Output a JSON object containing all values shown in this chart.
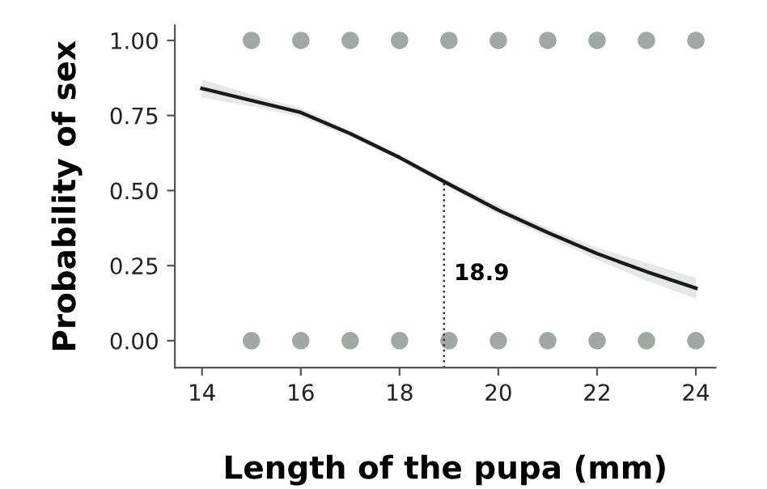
{
  "chart_data": {
    "type": "line",
    "xlabel": "Length of the pupa (mm)",
    "ylabel": "Probability of sex",
    "xlim": [
      13.45,
      24.4
    ],
    "ylim": [
      -0.09,
      1.05
    ],
    "xticks": [
      14,
      16,
      18,
      20,
      22,
      24
    ],
    "yticks": [
      {
        "value": 0,
        "label": "0.00"
      },
      {
        "value": 0.25,
        "label": "0.25"
      },
      {
        "value": 0.5,
        "label": "0.50"
      },
      {
        "value": 0.75,
        "label": "0.75"
      },
      {
        "value": 1,
        "label": "1.00"
      }
    ],
    "grid": false,
    "legend": false,
    "series": [
      {
        "color": "#1a1a1a",
        "x": [
          14,
          15,
          16,
          17,
          18,
          18.9,
          20,
          21,
          22,
          23,
          24
        ],
        "values": [
          0.84,
          0.8,
          0.76,
          0.69,
          0.61,
          0.53,
          0.435,
          0.36,
          0.29,
          0.23,
          0.175
        ],
        "lower": [
          0.81,
          0.78,
          0.745,
          0.68,
          0.6,
          0.52,
          0.42,
          0.345,
          0.27,
          0.2,
          0.14
        ],
        "upper": [
          0.87,
          0.82,
          0.775,
          0.7,
          0.62,
          0.54,
          0.45,
          0.375,
          0.31,
          0.26,
          0.21
        ]
      },
      {
        "type": "scatter",
        "marker": "circle",
        "color": "#9fa8a3",
        "x": [
          15,
          16,
          17,
          18,
          19,
          20,
          21,
          22,
          23,
          24
        ],
        "values": [
          1,
          1,
          1,
          1,
          1,
          1,
          1,
          1,
          1,
          1
        ]
      },
      {
        "type": "scatter",
        "marker": "circle",
        "color": "#9fa8a3",
        "x": [
          15,
          16,
          17,
          18,
          19,
          20,
          21,
          22,
          23,
          24
        ],
        "values": [
          0,
          0,
          0,
          0,
          0,
          0,
          0,
          0,
          0,
          0
        ]
      }
    ],
    "ref_lines": [
      {
        "axis": "x",
        "value": 18.9,
        "label": "18.9",
        "line_style": "dotted",
        "color": "#333333"
      }
    ]
  }
}
